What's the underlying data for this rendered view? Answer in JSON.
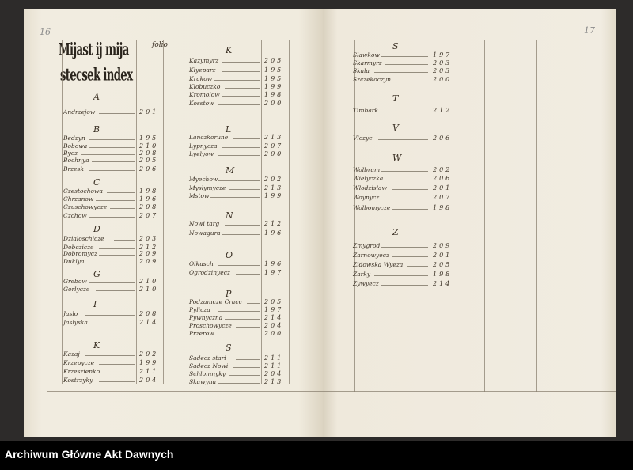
{
  "left_page": {
    "page_number": "16",
    "title_line1": "Mijast ij mija",
    "title_line2": "stecsek index",
    "folio_label": "folio",
    "columns": [
      {
        "groups": [
          {
            "letter": "A",
            "entries": [
              {
                "name": "Andrzejow",
                "folio": "201"
              }
            ]
          },
          {
            "letter": "B",
            "entries": [
              {
                "name": "Bedzyn",
                "folio": "195"
              },
              {
                "name": "Bobowa",
                "folio": "210"
              },
              {
                "name": "Bycz",
                "folio": "208"
              },
              {
                "name": "Bochnya",
                "folio": "205"
              },
              {
                "name": "Brzesk",
                "folio": "206"
              }
            ]
          },
          {
            "letter": "C",
            "entries": [
              {
                "name": "Czestochowa",
                "folio": "198"
              },
              {
                "name": "Chrzanow",
                "folio": "196"
              },
              {
                "name": "Czuschowycze",
                "folio": "208"
              },
              {
                "name": "Czchow",
                "folio": "207"
              }
            ]
          },
          {
            "letter": "D",
            "entries": [
              {
                "name": "Dzialoschicze",
                "folio": "203"
              },
              {
                "name": "Dobczicze",
                "folio": "212"
              },
              {
                "name": "Dobromycz",
                "folio": "209"
              },
              {
                "name": "Duklya",
                "folio": "209"
              }
            ]
          },
          {
            "letter": "G",
            "entries": [
              {
                "name": "Grebow",
                "folio": "210"
              },
              {
                "name": "Gorlycze",
                "folio": "210"
              }
            ]
          },
          {
            "letter": "I",
            "entries": [
              {
                "name": "Jaslo",
                "folio": "208"
              },
              {
                "name": "Jaslyska",
                "folio": "214"
              }
            ]
          },
          {
            "letter": "K",
            "entries": [
              {
                "name": "Kazaj",
                "folio": "202"
              },
              {
                "name": "Krzepycze",
                "folio": "199"
              },
              {
                "name": "Krzeszienko",
                "folio": "211"
              },
              {
                "name": "Kostrzyky",
                "folio": "204"
              }
            ]
          }
        ]
      },
      {
        "groups": [
          {
            "letter": "K",
            "entries": [
              {
                "name": "Kazymyrz",
                "folio": "205"
              },
              {
                "name": "Klyeparz",
                "folio": "195"
              },
              {
                "name": "Krakow",
                "folio": "195"
              },
              {
                "name": "Klobuczko",
                "folio": "199"
              },
              {
                "name": "Kromolow",
                "folio": "198"
              },
              {
                "name": "Kosstow",
                "folio": "200"
              }
            ]
          },
          {
            "letter": "L",
            "entries": [
              {
                "name": "Lanczkorune",
                "folio": "213"
              },
              {
                "name": "Lypnycza",
                "folio": "207"
              },
              {
                "name": "Lyelyow",
                "folio": "200"
              }
            ]
          },
          {
            "letter": "M",
            "entries": [
              {
                "name": "Myechow",
                "folio": "202"
              },
              {
                "name": "Myslymycze",
                "folio": "213"
              },
              {
                "name": "Mstow",
                "folio": "199"
              }
            ]
          },
          {
            "letter": "N",
            "entries": [
              {
                "name": "Nowi targ",
                "folio": "212"
              },
              {
                "name": "Nowagura",
                "folio": "196"
              }
            ]
          },
          {
            "letter": "O",
            "entries": [
              {
                "name": "Olkusch",
                "folio": "196"
              },
              {
                "name": "Ogrodzinyecz",
                "folio": "197"
              }
            ]
          },
          {
            "letter": "P",
            "entries": [
              {
                "name": "Podzamcze Cracc",
                "folio": "205"
              },
              {
                "name": "Pylicza",
                "folio": "197"
              },
              {
                "name": "Pywnyczna",
                "folio": "214"
              },
              {
                "name": "Proschowycze",
                "folio": "204"
              },
              {
                "name": "Przerow",
                "folio": "200"
              }
            ]
          },
          {
            "letter": "S",
            "entries": [
              {
                "name": "Sadecz stari",
                "folio": "211"
              },
              {
                "name": "Sadecz Nowi",
                "folio": "211"
              },
              {
                "name": "Schlomnyky",
                "folio": "204"
              },
              {
                "name": "Skawyna",
                "folio": "213"
              }
            ]
          }
        ]
      }
    ]
  },
  "right_page": {
    "page_number": "17",
    "columns": [
      {
        "groups": [
          {
            "letter": "S",
            "entries": [
              {
                "name": "Slawkow",
                "folio": "197"
              },
              {
                "name": "Skarmyrz",
                "folio": "203"
              },
              {
                "name": "Skala",
                "folio": "203"
              },
              {
                "name": "Szczekoczyn",
                "folio": "200"
              }
            ]
          },
          {
            "letter": "T",
            "entries": [
              {
                "name": "Timbark",
                "folio": "212"
              }
            ]
          },
          {
            "letter": "V",
            "entries": [
              {
                "name": "Vlczyc",
                "folio": "206"
              }
            ]
          },
          {
            "letter": "W",
            "entries": [
              {
                "name": "Wolbram",
                "folio": "202"
              },
              {
                "name": "Wielyczka",
                "folio": "206"
              },
              {
                "name": "Wlodzislaw",
                "folio": "201"
              },
              {
                "name": "Woynycz",
                "folio": "207"
              },
              {
                "name": "Wolbomycze",
                "folio": "198"
              }
            ]
          },
          {
            "letter": "Z",
            "entries": [
              {
                "name": "Zmygrod",
                "folio": "209"
              },
              {
                "name": "Zarnowyecz",
                "folio": "201"
              },
              {
                "name": "Zidowska Wyeza",
                "folio": "205"
              },
              {
                "name": "Zarky",
                "folio": "198"
              },
              {
                "name": "Zywyecz",
                "folio": "214"
              }
            ]
          }
        ]
      }
    ]
  },
  "footer": {
    "archive_name": "Archiwum Główne Akt Dawnych"
  }
}
